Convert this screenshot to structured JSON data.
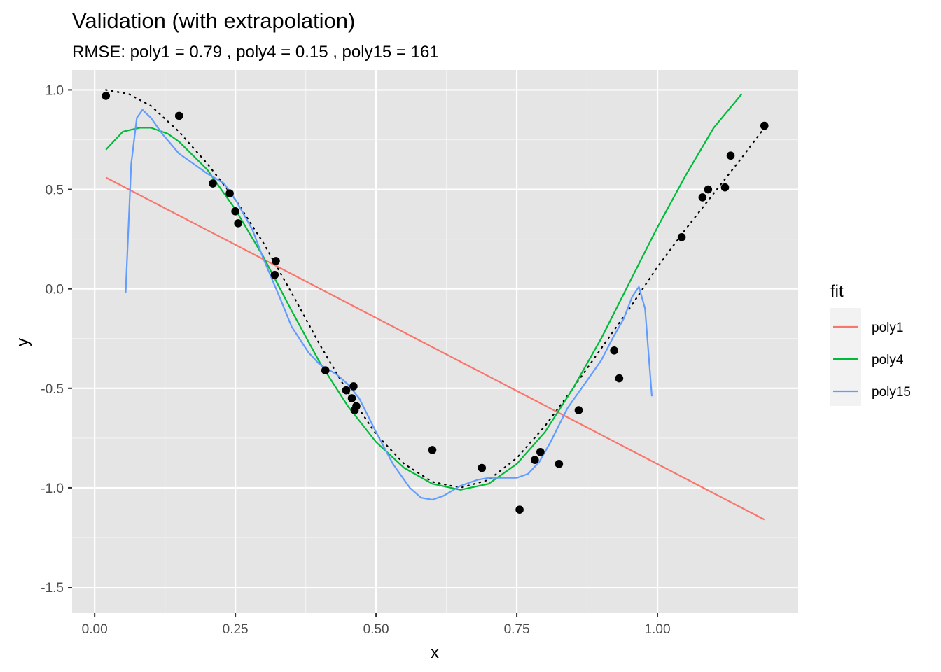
{
  "chart_data": {
    "type": "line",
    "title": "Validation (with extrapolation)",
    "subtitle": "RMSE: poly1 = 0.79 , poly4 = 0.15 , poly15 = 161",
    "xlabel": "x",
    "ylabel": "y",
    "xlim": [
      -0.04,
      1.25
    ],
    "ylim": [
      -1.63,
      1.1
    ],
    "x_ticks": [
      0.0,
      0.25,
      0.5,
      0.75,
      1.0
    ],
    "x_tick_labels": [
      "0.00",
      "0.25",
      "0.50",
      "0.75",
      "1.00"
    ],
    "y_ticks": [
      1.0,
      0.5,
      0.0,
      -0.5,
      -1.0,
      -1.5
    ],
    "y_tick_labels": [
      "1.0",
      "0.5",
      "0.0",
      "-0.5",
      "-1.0",
      "-1.5"
    ],
    "grid": true,
    "background": "#e5e5e5",
    "legend": {
      "title": "fit",
      "placement": "right",
      "entries": [
        {
          "label": "poly1",
          "color": "#F8766D"
        },
        {
          "label": "poly4",
          "color": "#00BA38"
        },
        {
          "label": "poly15",
          "color": "#619CFF"
        }
      ]
    },
    "points": {
      "color": "#000000",
      "x": [
        0.02,
        0.15,
        0.21,
        0.24,
        0.25,
        0.255,
        0.32,
        0.322,
        0.41,
        0.447,
        0.457,
        0.46,
        0.462,
        0.465,
        0.6,
        0.688,
        0.755,
        0.782,
        0.792,
        0.825,
        0.86,
        0.923,
        0.932,
        1.043,
        1.08,
        1.09,
        1.12,
        1.13,
        1.19
      ],
      "y": [
        0.97,
        0.87,
        0.53,
        0.48,
        0.39,
        0.33,
        0.07,
        0.14,
        -0.41,
        -0.51,
        -0.55,
        -0.49,
        -0.61,
        -0.59,
        -0.81,
        -0.9,
        -1.11,
        -0.86,
        -0.82,
        -0.88,
        -0.61,
        -0.31,
        -0.45,
        0.26,
        0.46,
        0.5,
        0.51,
        0.67,
        0.82
      ]
    },
    "true_curve": {
      "style": "dotted",
      "color": "#000000",
      "x": [
        0.02,
        0.06,
        0.1,
        0.15,
        0.2,
        0.25,
        0.3,
        0.35,
        0.4,
        0.45,
        0.5,
        0.55,
        0.6,
        0.65,
        0.7,
        0.75,
        0.8,
        0.85,
        0.9,
        0.95,
        1.0,
        1.05,
        1.1,
        1.15,
        1.19
      ],
      "y": [
        1.0,
        0.98,
        0.92,
        0.79,
        0.63,
        0.45,
        0.23,
        -0.02,
        -0.28,
        -0.52,
        -0.73,
        -0.88,
        -0.97,
        -1.0,
        -0.96,
        -0.85,
        -0.69,
        -0.5,
        -0.3,
        -0.1,
        0.11,
        0.3,
        0.48,
        0.66,
        0.81
      ]
    },
    "series": [
      {
        "name": "poly1",
        "color": "#F8766D",
        "x": [
          0.02,
          1.19
        ],
        "y": [
          0.56,
          -1.16
        ]
      },
      {
        "name": "poly4",
        "color": "#00BA38",
        "x": [
          0.02,
          0.05,
          0.08,
          0.1,
          0.13,
          0.15,
          0.2,
          0.25,
          0.3,
          0.35,
          0.4,
          0.45,
          0.5,
          0.55,
          0.6,
          0.65,
          0.7,
          0.75,
          0.8,
          0.85,
          0.9,
          0.95,
          1.0,
          1.05,
          1.1,
          1.15
        ],
        "y": [
          0.7,
          0.79,
          0.81,
          0.81,
          0.78,
          0.74,
          0.6,
          0.4,
          0.16,
          -0.11,
          -0.37,
          -0.59,
          -0.77,
          -0.9,
          -0.98,
          -1.01,
          -0.98,
          -0.88,
          -0.72,
          -0.5,
          -0.25,
          0.03,
          0.31,
          0.57,
          0.81,
          0.98
        ]
      },
      {
        "name": "poly15",
        "color": "#619CFF",
        "x": [
          0.055,
          0.065,
          0.075,
          0.085,
          0.1,
          0.12,
          0.15,
          0.18,
          0.2,
          0.23,
          0.25,
          0.28,
          0.3,
          0.33,
          0.35,
          0.38,
          0.4,
          0.43,
          0.45,
          0.47,
          0.5,
          0.53,
          0.56,
          0.58,
          0.6,
          0.62,
          0.65,
          0.68,
          0.7,
          0.73,
          0.75,
          0.77,
          0.79,
          0.81,
          0.84,
          0.86,
          0.88,
          0.9,
          0.92,
          0.94,
          0.955,
          0.967,
          0.978,
          0.99
        ],
        "y": [
          -0.02,
          0.63,
          0.86,
          0.9,
          0.86,
          0.78,
          0.68,
          0.62,
          0.58,
          0.53,
          0.45,
          0.3,
          0.15,
          -0.05,
          -0.19,
          -0.32,
          -0.38,
          -0.43,
          -0.48,
          -0.55,
          -0.72,
          -0.88,
          -1.0,
          -1.05,
          -1.06,
          -1.04,
          -0.99,
          -0.96,
          -0.95,
          -0.95,
          -0.95,
          -0.93,
          -0.87,
          -0.77,
          -0.6,
          -0.52,
          -0.44,
          -0.36,
          -0.25,
          -0.15,
          -0.04,
          0.01,
          -0.1,
          -0.54
        ]
      }
    ]
  }
}
